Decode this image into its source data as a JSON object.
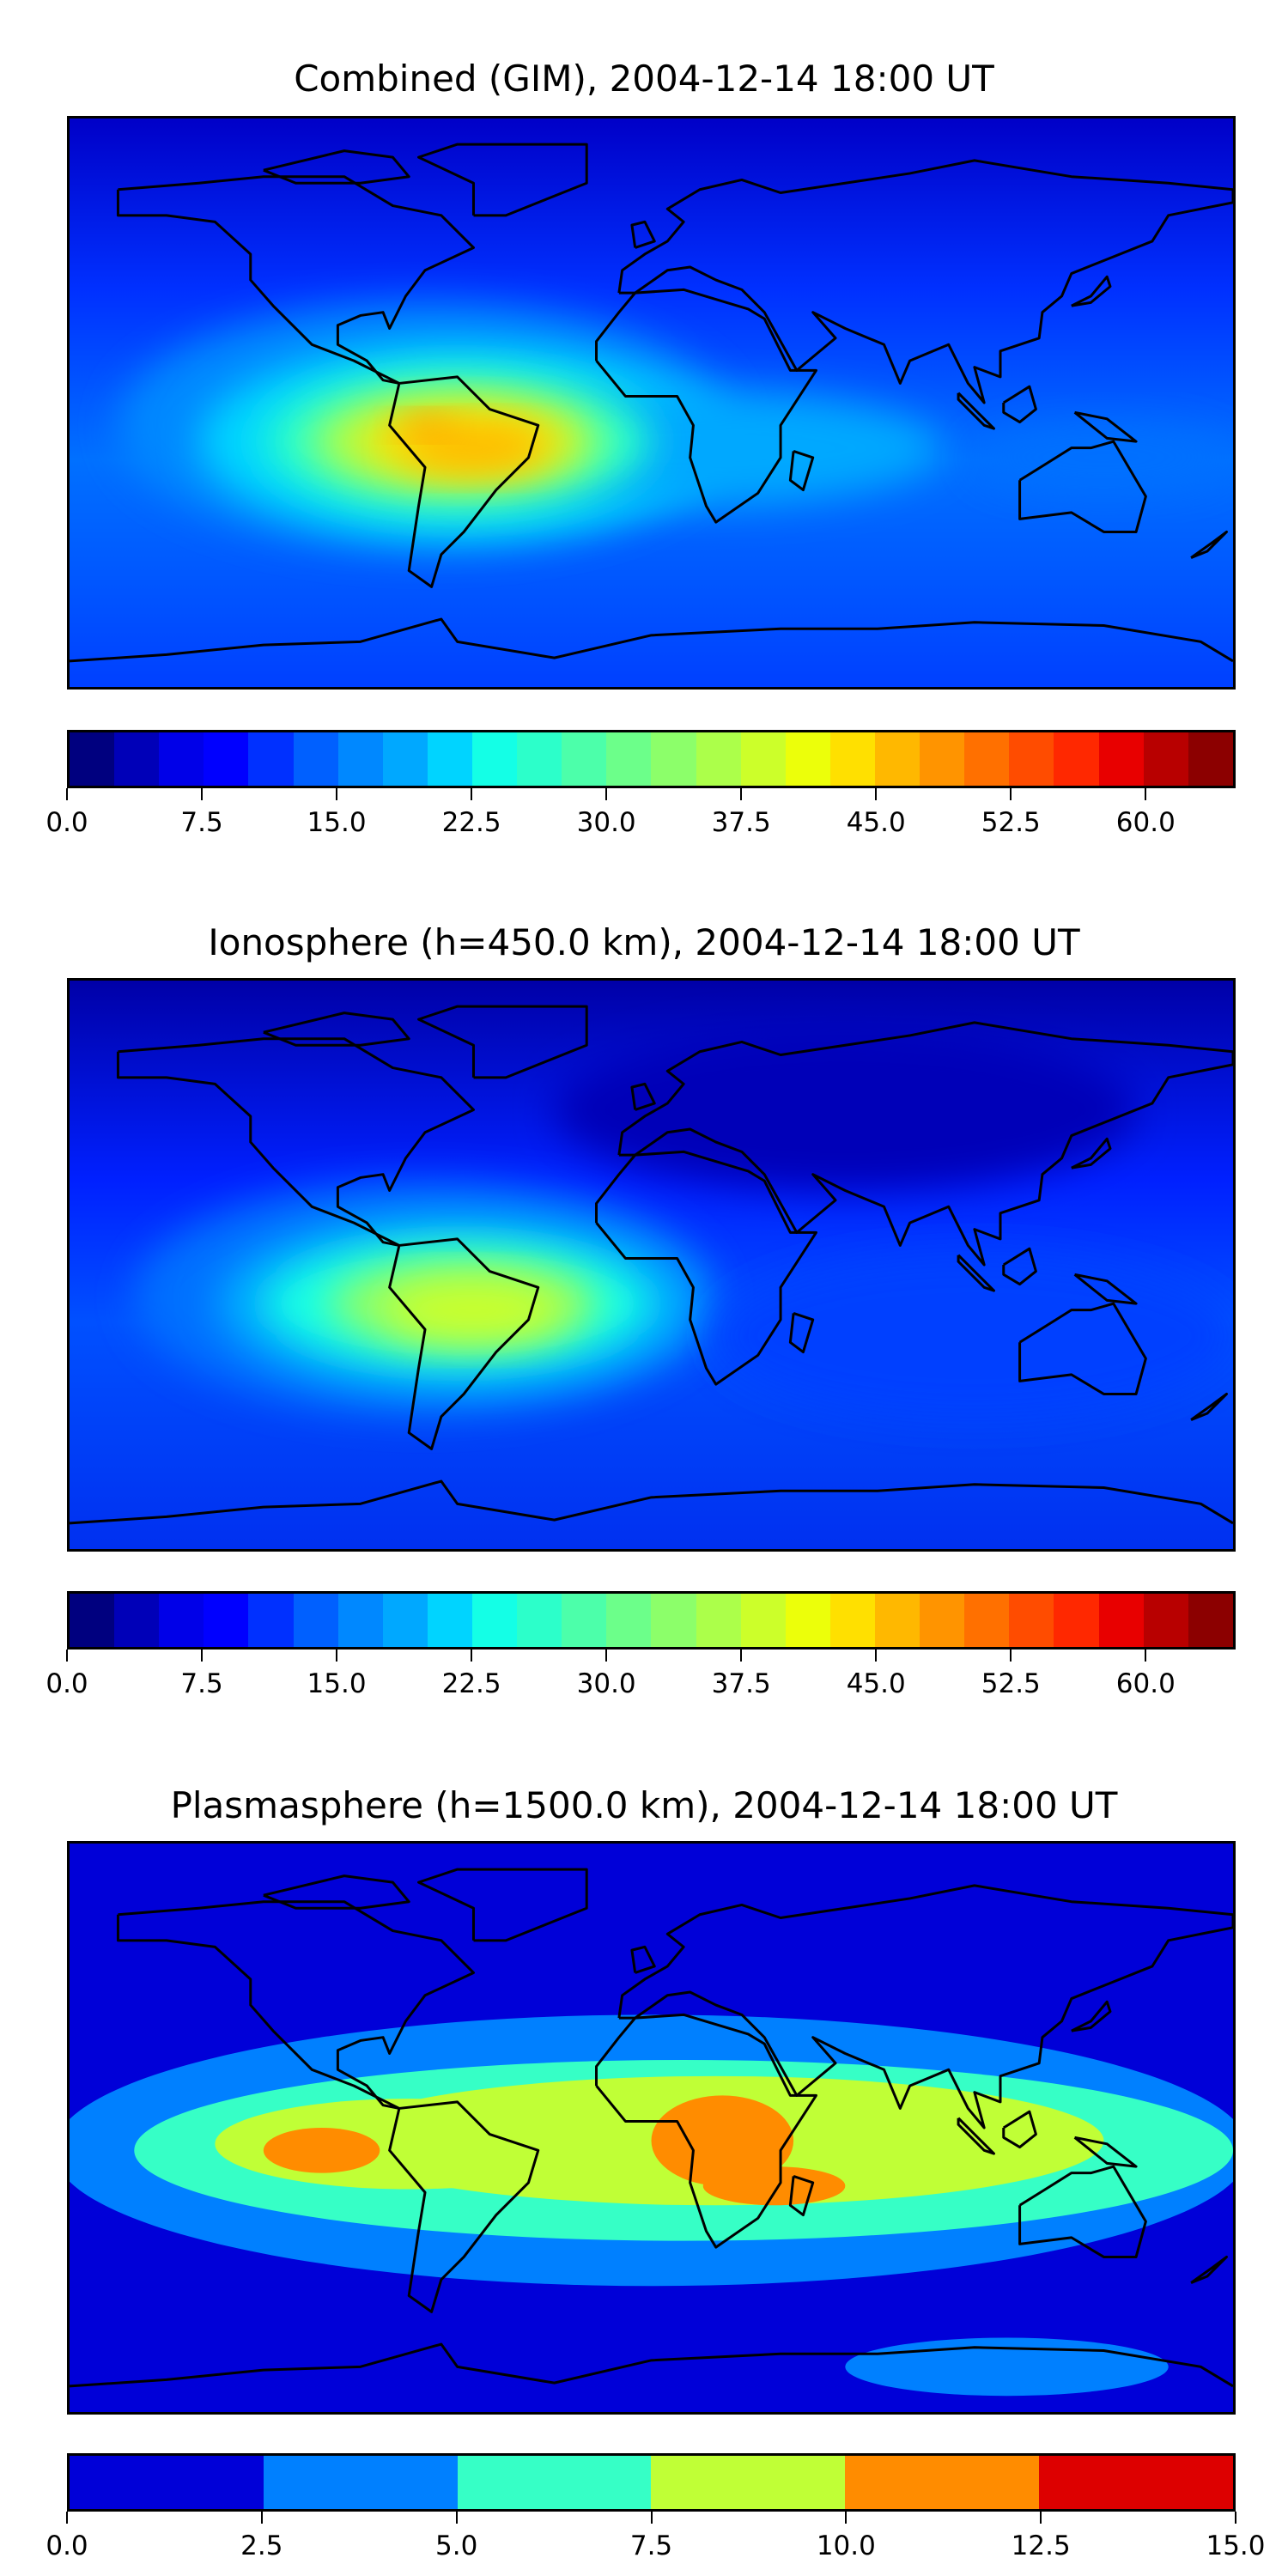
{
  "panels": [
    {
      "title": "Combined (GIM), 2004-12-14 18:00 UT",
      "colorbar": {
        "min": 0,
        "max": 65,
        "step": 2.5,
        "tick_labels": [
          "0.0",
          "7.5",
          "15.0",
          "22.5",
          "30.0",
          "37.5",
          "45.0",
          "52.5",
          "60.0"
        ],
        "tick_values": [
          0,
          7.5,
          15,
          22.5,
          30,
          37.5,
          45,
          52.5,
          60
        ],
        "colors": [
          "#00007f",
          "#0000b8",
          "#0000e8",
          "#0000ff",
          "#0030ff",
          "#0060ff",
          "#0088ff",
          "#00a8ff",
          "#00d4ff",
          "#14ffe6",
          "#2cffca",
          "#4cffaa",
          "#6cff8a",
          "#8cff6a",
          "#acff4a",
          "#ccff2a",
          "#ecff0a",
          "#ffe000",
          "#ffb800",
          "#ff9400",
          "#ff7000",
          "#ff4c00",
          "#ff2800",
          "#e80000",
          "#b80000",
          "#8c0000"
        ]
      }
    },
    {
      "title": "Ionosphere  (h=450.0 km), 2004-12-14 18:00 UT",
      "colorbar": {
        "min": 0,
        "max": 65,
        "step": 2.5,
        "tick_labels": [
          "0.0",
          "7.5",
          "15.0",
          "22.5",
          "30.0",
          "37.5",
          "45.0",
          "52.5",
          "60.0"
        ],
        "tick_values": [
          0,
          7.5,
          15,
          22.5,
          30,
          37.5,
          45,
          52.5,
          60
        ],
        "colors": [
          "#00007f",
          "#0000b8",
          "#0000e8",
          "#0000ff",
          "#0030ff",
          "#0060ff",
          "#0088ff",
          "#00a8ff",
          "#00d4ff",
          "#14ffe6",
          "#2cffca",
          "#4cffaa",
          "#6cff8a",
          "#8cff6a",
          "#acff4a",
          "#ccff2a",
          "#ecff0a",
          "#ffe000",
          "#ffb800",
          "#ff9400",
          "#ff7000",
          "#ff4c00",
          "#ff2800",
          "#e80000",
          "#b80000",
          "#8c0000"
        ]
      }
    },
    {
      "title": "Plasmasphere (h=1500.0 km), 2004-12-14 18:00 UT",
      "colorbar": {
        "min": 0,
        "max": 15,
        "step": 2.5,
        "tick_labels": [
          "0.0",
          "2.5",
          "5.0",
          "7.5",
          "10.0",
          "12.5",
          "15.0"
        ],
        "tick_values": [
          0,
          2.5,
          5,
          7.5,
          10,
          12.5,
          15
        ],
        "colors": [
          "#0000d8",
          "#0080ff",
          "#36ffc6",
          "#c0ff36",
          "#ff8c00",
          "#dd0000"
        ]
      }
    }
  ]
}
